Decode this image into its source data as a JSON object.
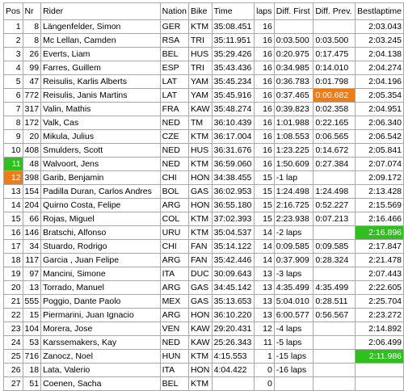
{
  "columns": [
    "Pos",
    "Nr",
    "Rider",
    "Nation",
    "Bike",
    "Time",
    "laps",
    "Diff. First",
    "Diff. Prev.",
    "Bestlaptime"
  ],
  "colors": {
    "green": "#2fbf1f",
    "orange": "#f07a14",
    "border": "#a8a8a8"
  },
  "rows": [
    {
      "pos": "1",
      "nr": "8",
      "rider": "Längenfelder, Simon",
      "nation": "GER",
      "bike": "KTM",
      "time": "35:08.451",
      "laps": "16",
      "diff_first": "",
      "diff_prev": "",
      "best": "2:03.043"
    },
    {
      "pos": "2",
      "nr": "8",
      "rider": "Mc Lellan, Camden",
      "nation": "RSA",
      "bike": "TRI",
      "time": "35:11.951",
      "laps": "16",
      "diff_first": "0:03.500",
      "diff_prev": "0:03.500",
      "best": "2:03.245"
    },
    {
      "pos": "3",
      "nr": "26",
      "rider": "Everts, Liam",
      "nation": "BEL",
      "bike": "HUS",
      "time": "35:29.426",
      "laps": "16",
      "diff_first": "0:20.975",
      "diff_prev": "0:17.475",
      "best": "2:04.138"
    },
    {
      "pos": "4",
      "nr": "99",
      "rider": "Farres, Guillem",
      "nation": "ESP",
      "bike": "TRI",
      "time": "35:43.436",
      "laps": "16",
      "diff_first": "0:34.985",
      "diff_prev": "0:14.010",
      "best": "2:04.274"
    },
    {
      "pos": "5",
      "nr": "47",
      "rider": "Reisulis, Karlis Alberts",
      "nation": "LAT",
      "bike": "YAM",
      "time": "35:45.234",
      "laps": "16",
      "diff_first": "0:36.783",
      "diff_prev": "0:01.798",
      "best": "2:04.196"
    },
    {
      "pos": "6",
      "nr": "772",
      "rider": "Reisulis, Janis Martins",
      "nation": "LAT",
      "bike": "YAM",
      "time": "35:45.916",
      "laps": "16",
      "diff_first": "0:37.465",
      "diff_prev": "0:00.682",
      "best": "2:05.354"
    },
    {
      "pos": "7",
      "nr": "317",
      "rider": "Valin, Mathis",
      "nation": "FRA",
      "bike": "KAW",
      "time": "35:48.274",
      "laps": "16",
      "diff_first": "0:39.823",
      "diff_prev": "0:02.358",
      "best": "2:04.951"
    },
    {
      "pos": "8",
      "nr": "172",
      "rider": "Valk, Cas",
      "nation": "NED",
      "bike": "TM",
      "time": "36:10.439",
      "laps": "16",
      "diff_first": "1:01.988",
      "diff_prev": "0:22.165",
      "best": "2:06.340"
    },
    {
      "pos": "9",
      "nr": "20",
      "rider": "Mikula, Julius",
      "nation": "CZE",
      "bike": "KTM",
      "time": "36:17.004",
      "laps": "16",
      "diff_first": "1:08.553",
      "diff_prev": "0:06.565",
      "best": "2:06.542"
    },
    {
      "pos": "10",
      "nr": "408",
      "rider": "Smulders, Scott",
      "nation": "NED",
      "bike": "HUS",
      "time": "36:31.676",
      "laps": "16",
      "diff_first": "1:23.225",
      "diff_prev": "0:14.672",
      "best": "2:05.841"
    },
    {
      "pos": "11",
      "nr": "48",
      "rider": "Walvoort, Jens",
      "nation": "NED",
      "bike": "KTM",
      "time": "36:59.060",
      "laps": "16",
      "diff_first": "1:50.609",
      "diff_prev": "0:27.384",
      "best": "2:07.074"
    },
    {
      "pos": "12",
      "nr": "398",
      "rider": "Garib, Benjamin",
      "nation": "CHI",
      "bike": "HON",
      "time": "34:38.455",
      "laps": "15",
      "diff_first": "-1 lap",
      "diff_prev": "",
      "best": "2:09.172"
    },
    {
      "pos": "13",
      "nr": "154",
      "rider": "Padilla Duran, Carlos Andres",
      "nation": "BOL",
      "bike": "GAS",
      "time": "36:02.953",
      "laps": "15",
      "diff_first": "1:24.498",
      "diff_prev": "1:24.498",
      "best": "2:13.428"
    },
    {
      "pos": "14",
      "nr": "204",
      "rider": "Quirno Costa, Felipe",
      "nation": "ARG",
      "bike": "HON",
      "time": "36:55.180",
      "laps": "15",
      "diff_first": "2:16.725",
      "diff_prev": "0:52.227",
      "best": "2:15.569"
    },
    {
      "pos": "15",
      "nr": "66",
      "rider": "Rojas, Miguel",
      "nation": "COL",
      "bike": "KTM",
      "time": "37:02.393",
      "laps": "15",
      "diff_first": "2:23.938",
      "diff_prev": "0:07.213",
      "best": "2:16.466"
    },
    {
      "pos": "16",
      "nr": "146",
      "rider": "Bratschi, Alfonso",
      "nation": "URU",
      "bike": "KTM",
      "time": "35:04.537",
      "laps": "14",
      "diff_first": "-2 laps",
      "diff_prev": "",
      "best": "2:16.896"
    },
    {
      "pos": "17",
      "nr": "34",
      "rider": "Stuardo, Rodrigo",
      "nation": "CHI",
      "bike": "FAN",
      "time": "35:14.122",
      "laps": "14",
      "diff_first": "0:09.585",
      "diff_prev": "0:09.585",
      "best": "2:17.847"
    },
    {
      "pos": "18",
      "nr": "117",
      "rider": "Garcia , Juan Felipe",
      "nation": "ARG",
      "bike": "FAN",
      "time": "35:42.446",
      "laps": "14",
      "diff_first": "0:37.909",
      "diff_prev": "0:28.324",
      "best": "2:21.478"
    },
    {
      "pos": "19",
      "nr": "97",
      "rider": "Mancini, Simone",
      "nation": "ITA",
      "bike": "DUC",
      "time": "30:09.643",
      "laps": "13",
      "diff_first": "-3 laps",
      "diff_prev": "",
      "best": "2:07.443"
    },
    {
      "pos": "20",
      "nr": "13",
      "rider": "Torrado, Manuel",
      "nation": "ARG",
      "bike": "GAS",
      "time": "34:45.142",
      "laps": "13",
      "diff_first": "4:35.499",
      "diff_prev": "4:35.499",
      "best": "2:22.605"
    },
    {
      "pos": "21",
      "nr": "555",
      "rider": "Poggio, Dante Paolo",
      "nation": "MEX",
      "bike": "GAS",
      "time": "35:13.653",
      "laps": "13",
      "diff_first": "5:04.010",
      "diff_prev": "0:28.511",
      "best": "2:25.704"
    },
    {
      "pos": "22",
      "nr": "15",
      "rider": "Piermarini, Juan Ignacio",
      "nation": "ARG",
      "bike": "HON",
      "time": "36:10.220",
      "laps": "13",
      "diff_first": "6:00.577",
      "diff_prev": "0:56.567",
      "best": "2:23.272"
    },
    {
      "pos": "23",
      "nr": "104",
      "rider": "Morera, Jose",
      "nation": "VEN",
      "bike": "KAW",
      "time": "29:20.431",
      "laps": "12",
      "diff_first": "-4 laps",
      "diff_prev": "",
      "best": "2:14.892"
    },
    {
      "pos": "24",
      "nr": "53",
      "rider": "Karssemakers, Kay",
      "nation": "NED",
      "bike": "KAW",
      "time": "25:26.343",
      "laps": "11",
      "diff_first": "-5 laps",
      "diff_prev": "",
      "best": "2:06.499"
    },
    {
      "pos": "25",
      "nr": "716",
      "rider": "Zanocz, Noel",
      "nation": "HUN",
      "bike": "KTM",
      "time": "4:15.553",
      "laps": "1",
      "diff_first": "-15 laps",
      "diff_prev": "",
      "best": "2:11.986"
    },
    {
      "pos": "26",
      "nr": "18",
      "rider": "Lata, Valerio",
      "nation": "ITA",
      "bike": "HON",
      "time": "4:04.422",
      "laps": "0",
      "diff_first": "-16 laps",
      "diff_prev": "",
      "best": ""
    },
    {
      "pos": "27",
      "nr": "51",
      "rider": "Coenen, Sacha",
      "nation": "BEL",
      "bike": "KTM",
      "time": "",
      "laps": "0",
      "diff_first": "",
      "diff_prev": "",
      "best": ""
    }
  ]
}
